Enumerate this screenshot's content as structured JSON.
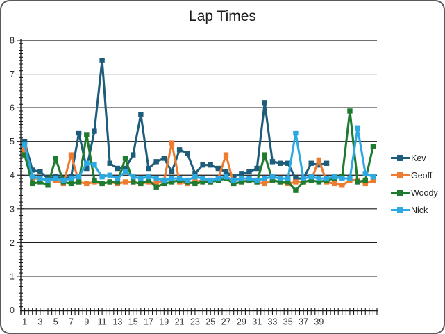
{
  "chart_title": "Lap Times",
  "chart_data": {
    "type": "line",
    "title": "Lap Times",
    "xlabel": "",
    "ylabel": "",
    "x_count": 46,
    "xlim": [
      1,
      46
    ],
    "ylim": [
      0,
      8
    ],
    "y_ticks": [
      0,
      1,
      2,
      3,
      4,
      5,
      6,
      7,
      8
    ],
    "x_tick_labels": [
      "1",
      "3",
      "5",
      "7",
      "9",
      "11",
      "13",
      "15",
      "17",
      "19",
      "21",
      "23",
      "25",
      "27",
      "29",
      "31",
      "33",
      "35",
      "37",
      "39"
    ],
    "grid": "horizontal",
    "legend_position": "right",
    "grid_color": "#1a1a1a",
    "axis_color": "#1a1a1a",
    "text_color": "#2b2b2b",
    "series": [
      {
        "name": "Kev",
        "color": "#1d5d7b",
        "values": [
          5.0,
          4.15,
          4.1,
          3.9,
          3.95,
          3.9,
          3.95,
          5.25,
          4.2,
          5.3,
          7.4,
          4.35,
          4.2,
          4.2,
          4.6,
          5.8,
          4.2,
          4.4,
          4.5,
          4.1,
          4.75,
          4.65,
          4.05,
          4.3,
          4.3,
          4.2,
          4.1,
          3.95,
          4.05,
          4.1,
          4.2,
          6.15,
          4.4,
          4.35,
          4.35,
          3.9,
          3.9,
          4.35,
          4.3,
          4.35
        ]
      },
      {
        "name": "Geoff",
        "color": "#ed7c31",
        "values": [
          4.75,
          3.9,
          3.9,
          3.85,
          3.85,
          3.75,
          4.6,
          3.8,
          3.75,
          3.8,
          3.75,
          3.8,
          3.75,
          3.8,
          3.8,
          3.75,
          3.8,
          3.75,
          3.85,
          4.95,
          3.8,
          3.75,
          3.8,
          3.85,
          3.8,
          3.9,
          4.6,
          3.75,
          3.8,
          3.85,
          3.8,
          3.75,
          3.85,
          3.8,
          3.75,
          3.8,
          3.8,
          3.85,
          4.45,
          3.8,
          3.75,
          3.7,
          3.85,
          3.85,
          3.75,
          3.85
        ]
      },
      {
        "name": "Woody",
        "color": "#1e7b30",
        "values": [
          4.6,
          3.75,
          3.8,
          3.7,
          4.5,
          3.8,
          3.75,
          3.8,
          5.2,
          3.85,
          3.75,
          3.8,
          3.8,
          4.5,
          3.8,
          3.75,
          3.85,
          3.65,
          3.75,
          3.8,
          3.85,
          3.8,
          3.75,
          3.8,
          3.8,
          3.85,
          3.9,
          3.75,
          3.8,
          3.85,
          3.8,
          4.6,
          3.85,
          3.8,
          3.8,
          3.55,
          3.8,
          3.85,
          3.8,
          3.85,
          3.9,
          3.95,
          5.9,
          3.8,
          3.85,
          4.85
        ]
      },
      {
        "name": "Nick",
        "color": "#2ca9e1",
        "values": [
          4.9,
          3.95,
          3.9,
          3.85,
          3.9,
          3.85,
          3.9,
          3.95,
          4.35,
          4.3,
          3.95,
          4.0,
          3.9,
          4.1,
          3.95,
          3.9,
          3.95,
          3.9,
          3.85,
          3.9,
          3.9,
          3.85,
          3.95,
          3.9,
          3.85,
          3.9,
          3.95,
          3.85,
          3.9,
          3.9,
          3.85,
          3.9,
          3.95,
          3.9,
          3.9,
          5.25,
          3.9,
          3.95,
          3.9,
          3.9,
          3.95,
          3.9,
          3.9,
          5.4,
          4.05,
          3.95
        ]
      }
    ]
  }
}
